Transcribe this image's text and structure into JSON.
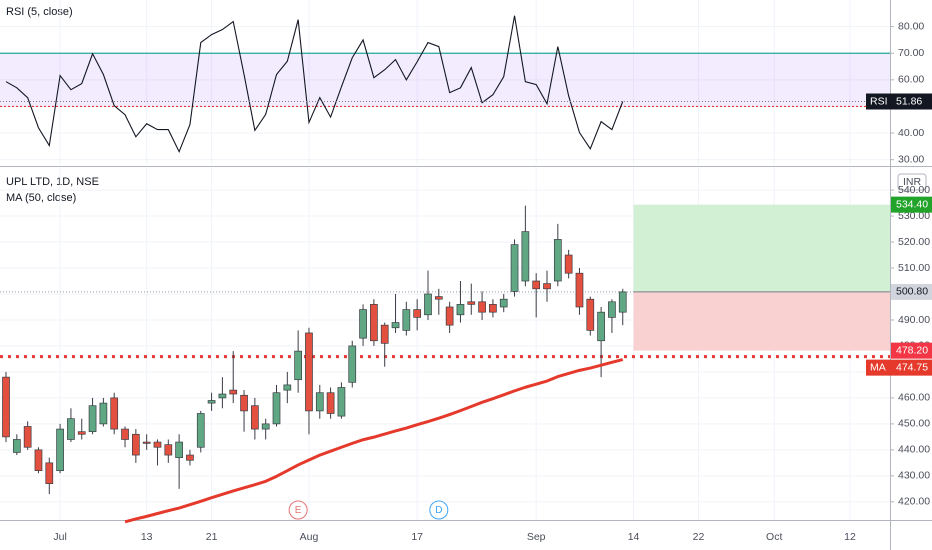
{
  "chart_data": [
    {
      "type": "line",
      "title": "RSI (5, close)",
      "series": [
        {
          "name": "RSI",
          "color": "#131722",
          "values": [
            59.3,
            57,
            53.3,
            42,
            35.3,
            61.6,
            56.3,
            58.6,
            69.8,
            62,
            50.3,
            46.9,
            38.6,
            43.5,
            41.3,
            41.3,
            33,
            43.2,
            74,
            77,
            78.9,
            81.9,
            62,
            41,
            47,
            62,
            67,
            82.6,
            44,
            53.3,
            46,
            57.4,
            68.3,
            75,
            60.8,
            63.8,
            67.6,
            60,
            66.8,
            74,
            72.5,
            55.2,
            57,
            64.6,
            51.4,
            54.4,
            61.2,
            84.1,
            59.3,
            58.2,
            51,
            72.5,
            54,
            40.2,
            34.1,
            44.3,
            41.3,
            51.86
          ]
        }
      ],
      "ylim": [
        28,
        90
      ],
      "yticks": [
        {
          "value": 30,
          "label": "30.00"
        },
        {
          "value": 40,
          "label": "40.00"
        },
        {
          "value": 50,
          "label": "50.00"
        },
        {
          "value": 60,
          "label": "60.00"
        },
        {
          "value": 70,
          "label": "70.00"
        },
        {
          "value": 80,
          "label": "80.00"
        }
      ],
      "upper_level": 70,
      "lower_level": 50,
      "band_color": "#9c6cf5",
      "upper_color": "#26a69a",
      "lower_color": "#e53935",
      "grid": true
    },
    {
      "type": "candlestick",
      "title": "UPL LTD, 1D, NSE",
      "currency": "INR",
      "open": [
        468,
        439,
        449,
        440,
        435,
        432,
        444,
        447,
        447,
        450,
        460,
        448,
        446,
        443,
        443,
        442,
        437,
        438,
        441,
        458,
        460,
        463,
        461,
        457,
        448,
        450,
        463,
        467,
        485,
        455,
        462,
        453,
        466,
        483,
        496,
        488,
        487,
        486,
        494,
        492,
        499,
        495,
        492,
        497,
        497,
        496,
        495,
        501,
        505,
        505,
        504,
        505,
        515,
        508,
        498,
        482,
        491,
        493
      ],
      "high": [
        470,
        446,
        451,
        441,
        437,
        450,
        456,
        452,
        460,
        460,
        462,
        449,
        448,
        446,
        444,
        444,
        446,
        440,
        455,
        462,
        468,
        478,
        463,
        460,
        452,
        465,
        470,
        486,
        487,
        465,
        464,
        466,
        482,
        496,
        498,
        489,
        500,
        497,
        498,
        509,
        502,
        497,
        505,
        504,
        501,
        498,
        500,
        521,
        534,
        508,
        509,
        527,
        517,
        510,
        499,
        495,
        498,
        502
      ],
      "low": [
        443,
        438,
        440,
        431,
        423,
        431,
        443,
        444,
        446,
        449,
        446,
        441,
        435,
        440,
        434,
        435,
        425,
        434,
        439,
        455,
        456,
        458,
        447,
        444,
        444,
        449,
        458,
        462,
        446,
        452,
        452,
        452,
        464,
        480,
        480,
        472,
        485,
        484,
        486,
        490,
        492,
        485,
        489,
        492,
        490,
        491,
        493,
        499,
        503,
        491,
        497,
        503,
        506,
        492,
        484,
        468,
        485,
        488
      ],
      "close": [
        445,
        444,
        441,
        432,
        427,
        448,
        452,
        446,
        457,
        458,
        448,
        444,
        438,
        442.5,
        441,
        438,
        443,
        436,
        454,
        459,
        461.5,
        461.5,
        455,
        448,
        450,
        462,
        465,
        478,
        455,
        462,
        454,
        464,
        480,
        494,
        482,
        481,
        489,
        494,
        491,
        500,
        498,
        488,
        496,
        496,
        493,
        493,
        498,
        519,
        524,
        502,
        502,
        521,
        508,
        495,
        486,
        493,
        497,
        500.8
      ],
      "up_color": "#5fa883",
      "down_color": "#e3503f",
      "series": [
        {
          "name": "MA (50, close)",
          "badge": "MA",
          "color": "#e5392b",
          "values": [
            null,
            null,
            null,
            null,
            null,
            null,
            null,
            null,
            null,
            null,
            null,
            412.3,
            413.4,
            414.4,
            415.5,
            416.6,
            417.6,
            418.9,
            420.2,
            421.6,
            422.9,
            424.2,
            425.4,
            426.6,
            427.9,
            429.8,
            432,
            434.2,
            436.1,
            437.97,
            439.5,
            441,
            442.5,
            443.9,
            444.9,
            446.1,
            447.3,
            448.4,
            449.7,
            450.9,
            452.2,
            453.6,
            455.1,
            456.7,
            458.3,
            459.7,
            461.2,
            462.7,
            464.1,
            465.3,
            466.5,
            468.2,
            469.4,
            470.6,
            471.5,
            472.6,
            473.7,
            474.75
          ]
        }
      ],
      "xlim": [
        -0.555,
        81.7
      ],
      "xticks": [
        {
          "value": 5,
          "label": "Jul"
        },
        {
          "value": 13,
          "label": "13"
        },
        {
          "value": 19,
          "label": "21"
        },
        {
          "value": 28,
          "label": "Aug"
        },
        {
          "value": 38,
          "label": "17"
        },
        {
          "value": 49,
          "label": "Sep"
        },
        {
          "value": 58,
          "label": "14"
        },
        {
          "value": 64,
          "label": "22"
        },
        {
          "value": 71,
          "label": "Oct"
        },
        {
          "value": 78,
          "label": "12"
        }
      ],
      "ylim": [
        413,
        548.5
      ],
      "yticks": [
        {
          "value": 420,
          "label": "420.00"
        },
        {
          "value": 430,
          "label": "430.00"
        },
        {
          "value": 440,
          "label": "440.00"
        },
        {
          "value": 450,
          "label": "450.00"
        },
        {
          "value": 460,
          "label": "460.00"
        },
        {
          "value": 470,
          "label": "470.00"
        },
        {
          "value": 480,
          "label": "480.00"
        },
        {
          "value": 490,
          "label": "490.00"
        },
        {
          "value": 500,
          "label": "500.00"
        },
        {
          "value": 510,
          "label": "510.00"
        },
        {
          "value": 520,
          "label": "520.00"
        },
        {
          "value": 530,
          "label": "530.00"
        },
        {
          "value": 540,
          "label": "540.00"
        }
      ],
      "position": {
        "x_start": 58,
        "target": {
          "value": 534.4,
          "label": "534.40"
        },
        "entry": {
          "value": 500.8,
          "label": "500.80"
        },
        "stop": {
          "value": 478.2,
          "label": "478.20"
        }
      },
      "hline": 475.9,
      "events": [
        {
          "label": "E",
          "x": 27,
          "color": "#e57373"
        },
        {
          "label": "D",
          "x": 40,
          "color": "#42a5f5"
        }
      ],
      "grid": true
    }
  ]
}
